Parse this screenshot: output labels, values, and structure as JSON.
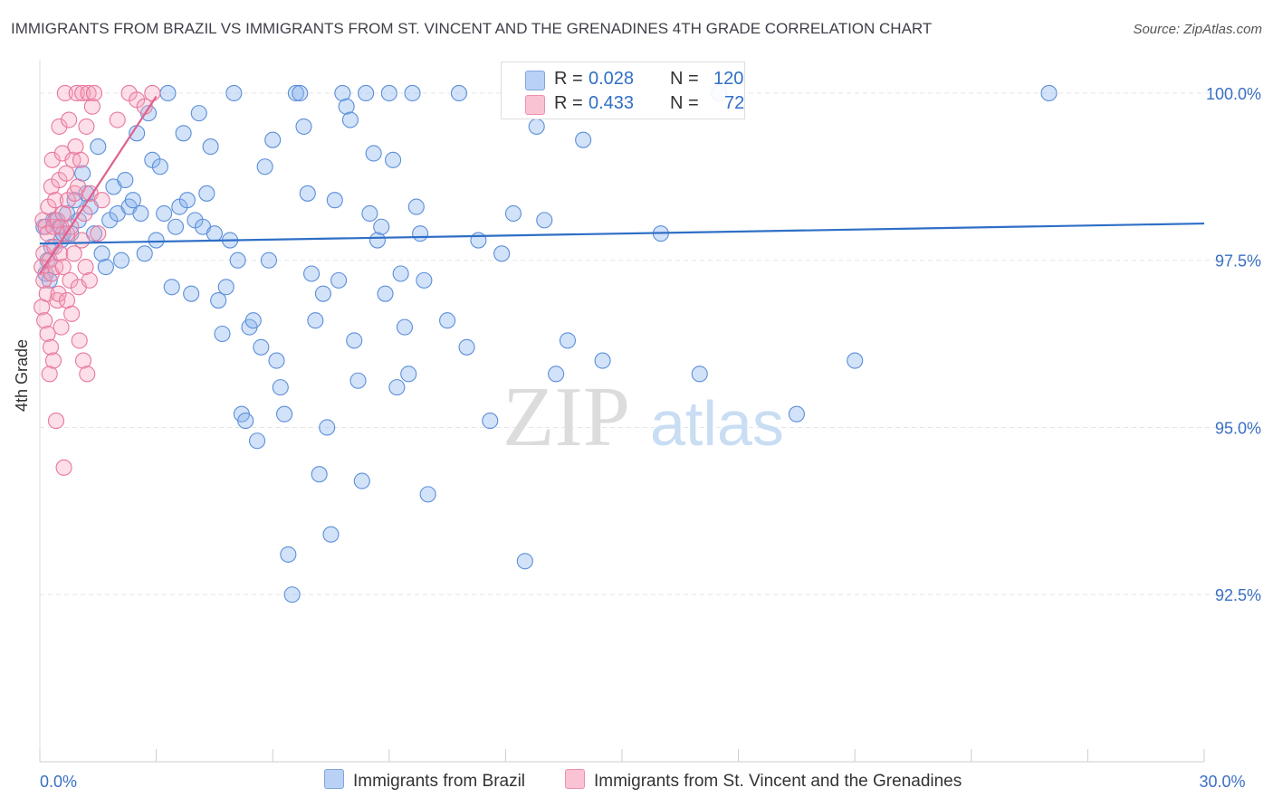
{
  "title": "IMMIGRANTS FROM BRAZIL VS IMMIGRANTS FROM ST. VINCENT AND THE GRENADINES 4TH GRADE CORRELATION CHART",
  "source": "Source: ZipAtlas.com",
  "watermark": {
    "zip": "ZIP",
    "atlas": "atlas"
  },
  "legend": {
    "series1": {
      "r_label": "R = ",
      "r_value": "0.028",
      "n_label": "N = ",
      "n_value": "120",
      "color": "#8ab4f0"
    },
    "series2": {
      "r_label": "R = ",
      "r_value": "0.433",
      "n_label": "N = ",
      "n_value": "72",
      "color": "#f5a3bd"
    }
  },
  "chart_data": {
    "type": "scatter",
    "title": "IMMIGRANTS FROM BRAZIL VS IMMIGRANTS FROM ST. VINCENT AND THE GRENADINES 4TH GRADE CORRELATION CHART",
    "xlabel": "",
    "ylabel": "4th Grade",
    "xlim": [
      0,
      30
    ],
    "ylim": [
      90.0,
      100.5
    ],
    "x_tick_labels": [
      {
        "value": 0,
        "label": "0.0%"
      },
      {
        "value": 30,
        "label": "30.0%"
      }
    ],
    "y_tick_labels": [
      {
        "value": 100.0,
        "label": "100.0%"
      },
      {
        "value": 97.5,
        "label": "97.5%"
      },
      {
        "value": 95.0,
        "label": "95.0%"
      },
      {
        "value": 92.5,
        "label": "92.5%"
      }
    ],
    "grid": true,
    "series": [
      {
        "name": "Immigrants from Brazil",
        "color": "#8ab4f0",
        "stroke": "#5b8fd8",
        "trend": {
          "x": [
            0.0,
            30.0
          ],
          "y": [
            97.75,
            98.05
          ],
          "color": "#2f6fc6"
        },
        "points": [
          [
            0.1,
            98.0
          ],
          [
            0.15,
            97.3
          ],
          [
            0.2,
            97.5
          ],
          [
            0.25,
            97.2
          ],
          [
            0.3,
            97.7
          ],
          [
            0.35,
            98.1
          ],
          [
            0.4,
            98.1
          ],
          [
            0.5,
            98.0
          ],
          [
            0.55,
            97.8
          ],
          [
            0.6,
            97.9
          ],
          [
            0.7,
            98.2
          ],
          [
            0.8,
            97.9
          ],
          [
            0.9,
            98.4
          ],
          [
            1.0,
            98.1
          ],
          [
            1.1,
            98.8
          ],
          [
            1.2,
            98.5
          ],
          [
            1.3,
            98.3
          ],
          [
            1.4,
            97.9
          ],
          [
            1.5,
            99.2
          ],
          [
            1.6,
            97.6
          ],
          [
            1.7,
            97.4
          ],
          [
            1.8,
            98.1
          ],
          [
            1.9,
            98.6
          ],
          [
            2.0,
            98.2
          ],
          [
            2.1,
            97.5
          ],
          [
            2.2,
            98.7
          ],
          [
            2.3,
            98.3
          ],
          [
            2.4,
            98.4
          ],
          [
            2.5,
            99.4
          ],
          [
            2.6,
            98.2
          ],
          [
            2.7,
            97.6
          ],
          [
            2.8,
            99.7
          ],
          [
            2.9,
            99.0
          ],
          [
            3.0,
            97.8
          ],
          [
            3.1,
            98.9
          ],
          [
            3.2,
            98.2
          ],
          [
            3.3,
            100.0
          ],
          [
            3.4,
            97.1
          ],
          [
            3.5,
            98.0
          ],
          [
            3.6,
            98.3
          ],
          [
            3.7,
            99.4
          ],
          [
            3.8,
            98.4
          ],
          [
            3.9,
            97.0
          ],
          [
            4.0,
            98.1
          ],
          [
            4.1,
            99.7
          ],
          [
            4.2,
            98.0
          ],
          [
            4.3,
            98.5
          ],
          [
            4.4,
            99.2
          ],
          [
            4.5,
            97.9
          ],
          [
            4.6,
            96.9
          ],
          [
            4.7,
            96.4
          ],
          [
            4.8,
            97.1
          ],
          [
            4.9,
            97.8
          ],
          [
            5.0,
            100.0
          ],
          [
            5.1,
            97.5
          ],
          [
            5.2,
            95.2
          ],
          [
            5.3,
            95.1
          ],
          [
            5.4,
            96.5
          ],
          [
            5.5,
            96.6
          ],
          [
            5.6,
            94.8
          ],
          [
            5.7,
            96.2
          ],
          [
            5.8,
            98.9
          ],
          [
            5.9,
            97.5
          ],
          [
            6.0,
            99.3
          ],
          [
            6.1,
            96.0
          ],
          [
            6.2,
            95.6
          ],
          [
            6.3,
            95.2
          ],
          [
            6.4,
            93.1
          ],
          [
            6.5,
            92.5
          ],
          [
            6.6,
            100.0
          ],
          [
            6.7,
            100.0
          ],
          [
            6.8,
            99.5
          ],
          [
            6.9,
            98.5
          ],
          [
            7.0,
            97.3
          ],
          [
            7.1,
            96.6
          ],
          [
            7.2,
            94.3
          ],
          [
            7.3,
            97.0
          ],
          [
            7.4,
            95.0
          ],
          [
            7.5,
            93.4
          ],
          [
            7.6,
            98.4
          ],
          [
            7.7,
            97.2
          ],
          [
            7.8,
            100.0
          ],
          [
            7.9,
            99.8
          ],
          [
            8.0,
            99.6
          ],
          [
            8.1,
            96.3
          ],
          [
            8.2,
            95.7
          ],
          [
            8.3,
            94.2
          ],
          [
            8.4,
            100.0
          ],
          [
            8.5,
            98.2
          ],
          [
            8.6,
            99.1
          ],
          [
            8.7,
            97.8
          ],
          [
            8.8,
            98.0
          ],
          [
            8.9,
            97.0
          ],
          [
            9.0,
            100.0
          ],
          [
            9.1,
            99.0
          ],
          [
            9.2,
            95.6
          ],
          [
            9.3,
            97.3
          ],
          [
            9.4,
            96.5
          ],
          [
            9.5,
            95.8
          ],
          [
            9.6,
            100.0
          ],
          [
            9.7,
            98.3
          ],
          [
            9.8,
            97.9
          ],
          [
            9.9,
            97.2
          ],
          [
            10.0,
            94.0
          ],
          [
            10.5,
            96.6
          ],
          [
            10.8,
            100.0
          ],
          [
            11.0,
            96.2
          ],
          [
            11.3,
            97.8
          ],
          [
            11.6,
            95.1
          ],
          [
            11.9,
            97.6
          ],
          [
            12.2,
            98.2
          ],
          [
            12.5,
            93.0
          ],
          [
            12.8,
            99.5
          ],
          [
            13.0,
            98.1
          ],
          [
            13.3,
            95.8
          ],
          [
            13.6,
            96.3
          ],
          [
            14.0,
            99.3
          ],
          [
            14.5,
            96.0
          ],
          [
            16.0,
            97.9
          ],
          [
            17.0,
            95.8
          ],
          [
            17.5,
            100.0
          ],
          [
            19.5,
            95.2
          ],
          [
            21.0,
            96.0
          ],
          [
            26.0,
            100.0
          ]
        ]
      },
      {
        "name": "Immigrants from St. Vincent and the Grenadines",
        "color": "#f5a3bd",
        "stroke": "#e8779c",
        "trend": {
          "x": [
            0.0,
            3.0
          ],
          "y": [
            97.3,
            99.95
          ],
          "color": "#e0608c"
        },
        "points": [
          [
            0.05,
            97.4
          ],
          [
            0.05,
            96.8
          ],
          [
            0.08,
            98.1
          ],
          [
            0.1,
            97.2
          ],
          [
            0.1,
            97.6
          ],
          [
            0.12,
            96.6
          ],
          [
            0.15,
            98.0
          ],
          [
            0.18,
            97.0
          ],
          [
            0.2,
            97.9
          ],
          [
            0.2,
            96.4
          ],
          [
            0.22,
            98.3
          ],
          [
            0.25,
            97.5
          ],
          [
            0.25,
            95.8
          ],
          [
            0.28,
            96.2
          ],
          [
            0.3,
            98.6
          ],
          [
            0.3,
            97.3
          ],
          [
            0.32,
            99.0
          ],
          [
            0.35,
            98.0
          ],
          [
            0.35,
            96.0
          ],
          [
            0.38,
            97.7
          ],
          [
            0.4,
            98.4
          ],
          [
            0.4,
            97.4
          ],
          [
            0.42,
            95.1
          ],
          [
            0.45,
            98.1
          ],
          [
            0.45,
            96.9
          ],
          [
            0.48,
            97.0
          ],
          [
            0.5,
            99.5
          ],
          [
            0.5,
            98.7
          ],
          [
            0.52,
            97.6
          ],
          [
            0.55,
            98.0
          ],
          [
            0.55,
            96.5
          ],
          [
            0.58,
            99.1
          ],
          [
            0.6,
            98.2
          ],
          [
            0.6,
            97.4
          ],
          [
            0.62,
            94.4
          ],
          [
            0.65,
            100.0
          ],
          [
            0.68,
            98.8
          ],
          [
            0.7,
            97.9
          ],
          [
            0.7,
            96.9
          ],
          [
            0.72,
            98.4
          ],
          [
            0.75,
            99.6
          ],
          [
            0.78,
            97.2
          ],
          [
            0.8,
            98.0
          ],
          [
            0.82,
            96.7
          ],
          [
            0.85,
            99.0
          ],
          [
            0.88,
            97.6
          ],
          [
            0.9,
            98.5
          ],
          [
            0.92,
            99.2
          ],
          [
            0.95,
            100.0
          ],
          [
            0.98,
            98.6
          ],
          [
            1.0,
            97.1
          ],
          [
            1.02,
            96.3
          ],
          [
            1.05,
            99.0
          ],
          [
            1.08,
            97.8
          ],
          [
            1.1,
            100.0
          ],
          [
            1.12,
            96.0
          ],
          [
            1.15,
            98.2
          ],
          [
            1.18,
            97.4
          ],
          [
            1.2,
            99.5
          ],
          [
            1.22,
            95.8
          ],
          [
            1.25,
            100.0
          ],
          [
            1.28,
            97.2
          ],
          [
            1.3,
            98.5
          ],
          [
            1.35,
            99.8
          ],
          [
            1.4,
            100.0
          ],
          [
            1.5,
            97.9
          ],
          [
            1.6,
            98.4
          ],
          [
            2.0,
            99.6
          ],
          [
            2.3,
            100.0
          ],
          [
            2.5,
            99.9
          ],
          [
            2.7,
            99.8
          ],
          [
            2.9,
            100.0
          ]
        ]
      }
    ]
  }
}
